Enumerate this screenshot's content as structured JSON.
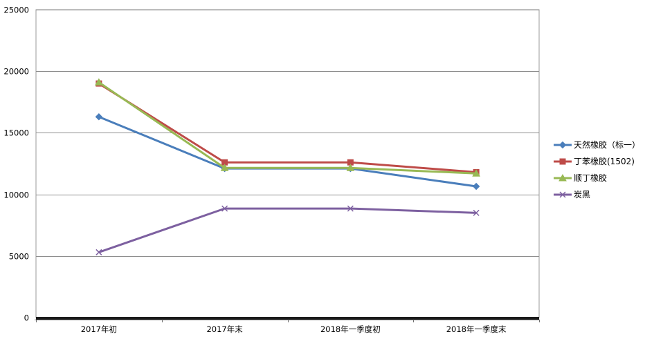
{
  "chart_data": {
    "type": "line",
    "title": "",
    "xlabel": "",
    "ylabel": "",
    "categories": [
      "2017年初",
      "2017年末",
      "2018年一季度初",
      "2018年一季度末"
    ],
    "ylim": [
      0,
      25000
    ],
    "yticks": [
      0,
      5000,
      10000,
      15000,
      20000,
      25000
    ],
    "grid": true,
    "legend_position": "right",
    "series": [
      {
        "name": "天然橡胶（标一）",
        "values": [
          16300,
          12100,
          12100,
          10650
        ],
        "color": "#4a7ebb",
        "marker": "diamond"
      },
      {
        "name": "丁苯橡胶(1502)",
        "values": [
          19000,
          12600,
          12600,
          11800
        ],
        "color": "#be4b48",
        "marker": "square"
      },
      {
        "name": "顺丁橡胶",
        "values": [
          19100,
          12150,
          12150,
          11700
        ],
        "color": "#98b954",
        "marker": "triangle"
      },
      {
        "name": "炭黑",
        "values": [
          5300,
          8850,
          8850,
          8500
        ],
        "color": "#7d60a0",
        "marker": "x"
      }
    ]
  }
}
